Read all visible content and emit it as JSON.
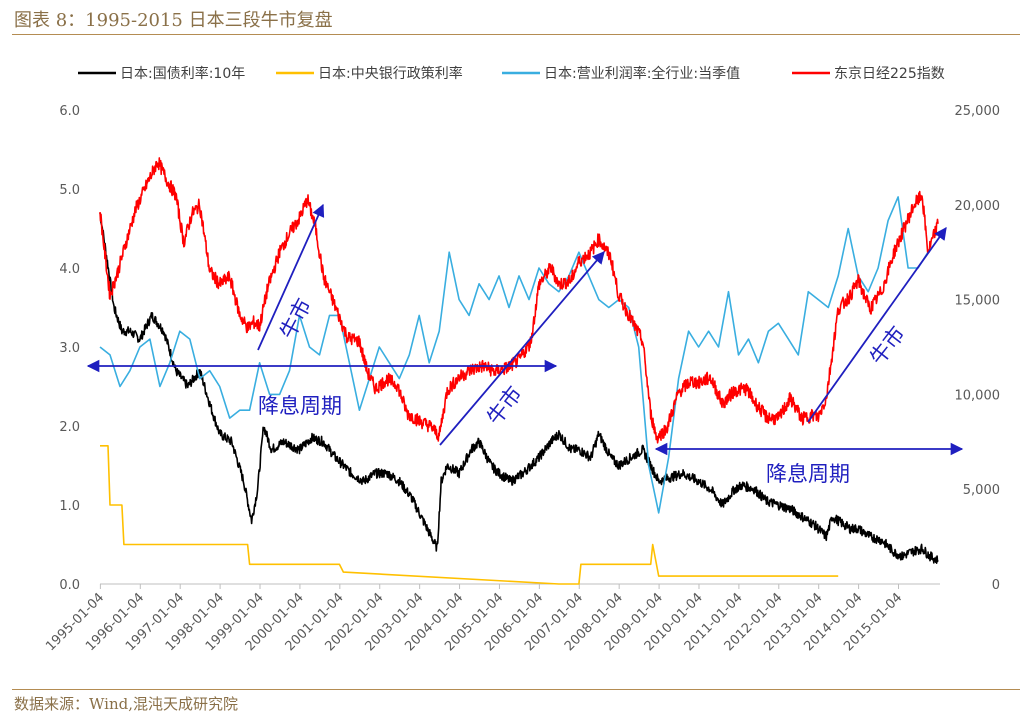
{
  "figure": {
    "title": "图表 8：1995-2015 日本三段牛市复盘",
    "source": "数据来源：Wind,混沌天成研究院"
  },
  "chart_data": {
    "type": "line",
    "title": "图表 8：1995-2015 日本三段牛市复盘",
    "xlabel": "",
    "ylabel": "",
    "y_left": {
      "range": [
        0,
        6
      ],
      "ticks": [
        "0.0",
        "1.0",
        "2.0",
        "3.0",
        "4.0",
        "5.0",
        "6.0"
      ]
    },
    "y_right": {
      "range": [
        0,
        25000
      ],
      "ticks": [
        "0",
        "5,000",
        "10,000",
        "15,000",
        "20,000",
        "25,000"
      ]
    },
    "x_range": [
      1995.0,
      2016.05
    ],
    "x_ticks": [
      "1995-01-04",
      "1996-01-04",
      "1997-01-04",
      "1998-01-04",
      "1999-01-04",
      "2000-01-04",
      "2001-01-04",
      "2002-01-04",
      "2003-01-04",
      "2004-01-04",
      "2005-01-04",
      "2006-01-04",
      "2007-01-04",
      "2008-01-04",
      "2009-01-04",
      "2010-01-04",
      "2011-01-04",
      "2012-01-04",
      "2013-01-04",
      "2014-01-04",
      "2015-01-04"
    ],
    "legend_position": "top",
    "grid": false,
    "series": [
      {
        "name": "日本:国债利率:10年",
        "axis": "left",
        "color": "#000000",
        "x": [
          1995.0,
          1995.15,
          1995.35,
          1995.55,
          1995.75,
          1996.0,
          1996.3,
          1996.6,
          1996.9,
          1997.2,
          1997.5,
          1997.8,
          1998.0,
          1998.3,
          1998.6,
          1998.8,
          1998.95,
          1999.1,
          1999.3,
          1999.6,
          2000.0,
          2000.3,
          2000.6,
          2000.9,
          2001.1,
          2001.3,
          2001.6,
          2001.9,
          2002.2,
          2002.5,
          2002.8,
          2003.0,
          2003.3,
          2003.45,
          2003.55,
          2003.7,
          2004.0,
          2004.3,
          2004.5,
          2004.8,
          2005.0,
          2005.3,
          2005.6,
          2006.0,
          2006.3,
          2006.5,
          2006.8,
          2007.0,
          2007.3,
          2007.5,
          2007.8,
          2008.0,
          2008.3,
          2008.6,
          2008.9,
          2009.0,
          2009.3,
          2009.6,
          2010.0,
          2010.3,
          2010.6,
          2010.9,
          2011.1,
          2011.4,
          2011.7,
          2012.0,
          2012.3,
          2012.6,
          2012.9,
          2013.2,
          2013.35,
          2013.5,
          2013.8,
          2014.0,
          2014.3,
          2014.6,
          2014.9,
          2015.1,
          2015.3,
          2015.6,
          2015.8,
          2016.0
        ],
        "values": [
          4.7,
          4.2,
          3.5,
          3.2,
          3.2,
          3.1,
          3.4,
          3.2,
          2.7,
          2.5,
          2.7,
          2.2,
          1.9,
          1.8,
          1.3,
          0.8,
          1.2,
          2.0,
          1.7,
          1.8,
          1.7,
          1.85,
          1.8,
          1.6,
          1.5,
          1.4,
          1.3,
          1.4,
          1.4,
          1.3,
          1.1,
          0.9,
          0.6,
          0.45,
          1.3,
          1.5,
          1.4,
          1.7,
          1.8,
          1.5,
          1.4,
          1.3,
          1.4,
          1.6,
          1.8,
          1.9,
          1.7,
          1.7,
          1.6,
          1.9,
          1.6,
          1.5,
          1.6,
          1.7,
          1.4,
          1.3,
          1.35,
          1.4,
          1.3,
          1.2,
          1.0,
          1.2,
          1.25,
          1.2,
          1.05,
          1.0,
          0.95,
          0.85,
          0.75,
          0.6,
          0.85,
          0.8,
          0.7,
          0.7,
          0.6,
          0.55,
          0.4,
          0.35,
          0.4,
          0.45,
          0.35,
          0.3
        ]
      },
      {
        "name": "日本:中央银行政策利率",
        "axis": "left",
        "color": "#ffc000",
        "x": [
          1995.0,
          1995.2,
          1995.25,
          1995.55,
          1995.6,
          1995.7,
          1998.7,
          1998.75,
          2001.0,
          2001.1,
          2006.5,
          2006.55,
          2007.0,
          2007.05,
          2008.8,
          2008.85,
          2009.0,
          2013.5
        ],
        "values": [
          1.75,
          1.75,
          1.0,
          1.0,
          0.5,
          0.5,
          0.5,
          0.25,
          0.25,
          0.15,
          0.0,
          0.0,
          0.0,
          0.25,
          0.25,
          0.5,
          0.1,
          0.1
        ]
      },
      {
        "name": "日本:营业利润率:全行业:当季值",
        "axis": "left",
        "color": "#39aee0",
        "x": [
          1995.0,
          1995.25,
          1995.5,
          1995.75,
          1996.0,
          1996.25,
          1996.5,
          1996.75,
          1997.0,
          1997.25,
          1997.5,
          1997.75,
          1998.0,
          1998.25,
          1998.5,
          1998.75,
          1999.0,
          1999.25,
          1999.5,
          1999.75,
          2000.0,
          2000.25,
          2000.5,
          2000.75,
          2001.0,
          2001.25,
          2001.5,
          2001.75,
          2002.0,
          2002.25,
          2002.5,
          2002.75,
          2003.0,
          2003.25,
          2003.5,
          2003.75,
          2004.0,
          2004.25,
          2004.5,
          2004.75,
          2005.0,
          2005.25,
          2005.5,
          2005.75,
          2006.0,
          2006.25,
          2006.5,
          2006.75,
          2007.0,
          2007.25,
          2007.5,
          2007.75,
          2008.0,
          2008.25,
          2008.5,
          2008.75,
          2009.0,
          2009.25,
          2009.5,
          2009.75,
          2010.0,
          2010.25,
          2010.5,
          2010.75,
          2011.0,
          2011.25,
          2011.5,
          2011.75,
          2012.0,
          2012.25,
          2012.5,
          2012.75,
          2013.0,
          2013.25,
          2013.5,
          2013.75,
          2014.0,
          2014.25,
          2014.5,
          2014.75,
          2015.0,
          2015.25,
          2015.5,
          2015.75
        ],
        "values": [
          3.0,
          2.9,
          2.5,
          2.7,
          3.0,
          3.1,
          2.5,
          2.8,
          3.2,
          3.1,
          2.6,
          2.7,
          2.5,
          2.1,
          2.2,
          2.2,
          2.8,
          2.4,
          2.4,
          2.7,
          3.4,
          3.0,
          2.9,
          3.4,
          3.4,
          2.8,
          2.2,
          2.6,
          3.0,
          2.8,
          2.6,
          2.9,
          3.4,
          2.8,
          3.2,
          4.2,
          3.6,
          3.4,
          3.8,
          3.6,
          3.9,
          3.5,
          3.9,
          3.6,
          4.0,
          3.8,
          3.7,
          3.9,
          4.2,
          3.9,
          3.6,
          3.5,
          3.6,
          3.5,
          3.0,
          1.5,
          0.9,
          1.6,
          2.6,
          3.2,
          3.0,
          3.2,
          3.0,
          3.7,
          2.9,
          3.1,
          2.8,
          3.2,
          3.3,
          3.1,
          2.9,
          3.7,
          3.6,
          3.5,
          3.9,
          4.5,
          3.9,
          3.7,
          4.0,
          4.6,
          4.9,
          4.0,
          4.0,
          4.2
        ]
      },
      {
        "name": "东京日经225指数",
        "axis": "right",
        "color": "#ff0000",
        "x": [
          1995.0,
          1995.1,
          1995.25,
          1995.45,
          1995.65,
          1995.9,
          1996.2,
          1996.45,
          1996.7,
          1996.9,
          1997.1,
          1997.3,
          1997.5,
          1997.75,
          1998.0,
          1998.25,
          1998.5,
          1998.7,
          1998.85,
          1999.0,
          1999.2,
          1999.5,
          1999.75,
          2000.0,
          2000.2,
          2000.4,
          2000.6,
          2000.9,
          2001.2,
          2001.5,
          2001.7,
          2001.9,
          2002.2,
          2002.45,
          2002.7,
          2003.0,
          2003.3,
          2003.5,
          2003.7,
          2004.0,
          2004.3,
          2004.6,
          2004.9,
          2005.2,
          2005.5,
          2005.8,
          2006.0,
          2006.3,
          2006.5,
          2006.8,
          2007.0,
          2007.3,
          2007.5,
          2007.8,
          2008.0,
          2008.3,
          2008.6,
          2008.8,
          2008.95,
          2009.2,
          2009.5,
          2009.8,
          2010.0,
          2010.3,
          2010.6,
          2010.9,
          2011.2,
          2011.4,
          2011.7,
          2012.0,
          2012.3,
          2012.6,
          2012.85,
          2013.0,
          2013.2,
          2013.5,
          2013.8,
          2014.0,
          2014.3,
          2014.6,
          2014.9,
          2015.1,
          2015.4,
          2015.6,
          2015.75,
          2016.0
        ],
        "values": [
          19700,
          17800,
          15200,
          16500,
          18000,
          19800,
          21200,
          22300,
          21200,
          20500,
          18000,
          19500,
          20000,
          16500,
          15800,
          16200,
          14200,
          13500,
          13800,
          13600,
          15600,
          17500,
          18500,
          19300,
          20300,
          18800,
          16200,
          14600,
          13000,
          12800,
          11200,
          10300,
          10800,
          10500,
          9000,
          8600,
          8300,
          7800,
          10200,
          10900,
          11300,
          11500,
          11200,
          11400,
          11800,
          12800,
          15800,
          16700,
          15800,
          16000,
          17000,
          17500,
          18200,
          17200,
          15200,
          14000,
          12800,
          9000,
          7700,
          8200,
          10100,
          10700,
          10600,
          10900,
          9500,
          10200,
          10300,
          9600,
          8800,
          8700,
          9800,
          8700,
          8900,
          8800,
          9800,
          14500,
          15200,
          16000,
          14500,
          15500,
          17500,
          18500,
          20000,
          20500,
          17500,
          19000
        ]
      }
    ],
    "annotations": [
      {
        "text": "牛市"
      },
      {
        "text": "降息周期"
      },
      {
        "text": "牛市"
      },
      {
        "text": "降息周期"
      },
      {
        "text": "牛市"
      }
    ]
  }
}
